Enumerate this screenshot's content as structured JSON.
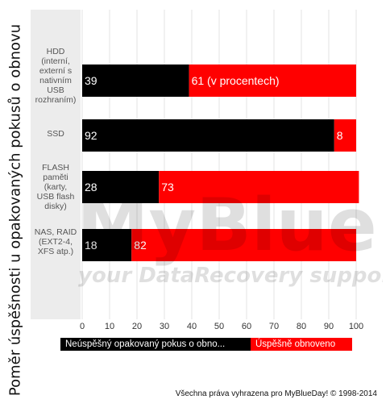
{
  "chart_data": {
    "type": "bar",
    "stacked": true,
    "orientation": "horizontal",
    "ylabel": "Poměr úspěšnosti u opakovaných pokusů o obnovu",
    "categories": [
      "HDD\n(interní,\nexterní s\nnativním\nUSB\nrozhraním)",
      "SSD",
      "FLASH\npaměti\n(karty,\nUSB flash\ndisky)",
      "NAS, RAID\n(EXT2-4,\nXFS atp.)"
    ],
    "series": [
      {
        "name": "Neúspěšný opakovaný pokus o obno...",
        "values": [
          39,
          92,
          28,
          18
        ],
        "color": "#000000"
      },
      {
        "name": "Úspěšně obnoveno",
        "values": [
          61,
          8,
          73,
          82
        ],
        "color": "#ff0000"
      }
    ],
    "data_labels": [
      [
        "39",
        "92",
        "28",
        "18"
      ],
      [
        "61 (v procentech)",
        "8",
        "73",
        "82"
      ]
    ],
    "xlim": [
      0,
      100
    ],
    "xticks": [
      0,
      10,
      20,
      30,
      40,
      50,
      60,
      70,
      80,
      90,
      100
    ],
    "grid": true,
    "legend_position": "bottom"
  },
  "credit": "Všechna práva vyhrazena pro MyBlueDay! © 1998-2014",
  "watermark": {
    "brand": "MyBlueDay!",
    "tagline": "your DataRecovery support"
  }
}
